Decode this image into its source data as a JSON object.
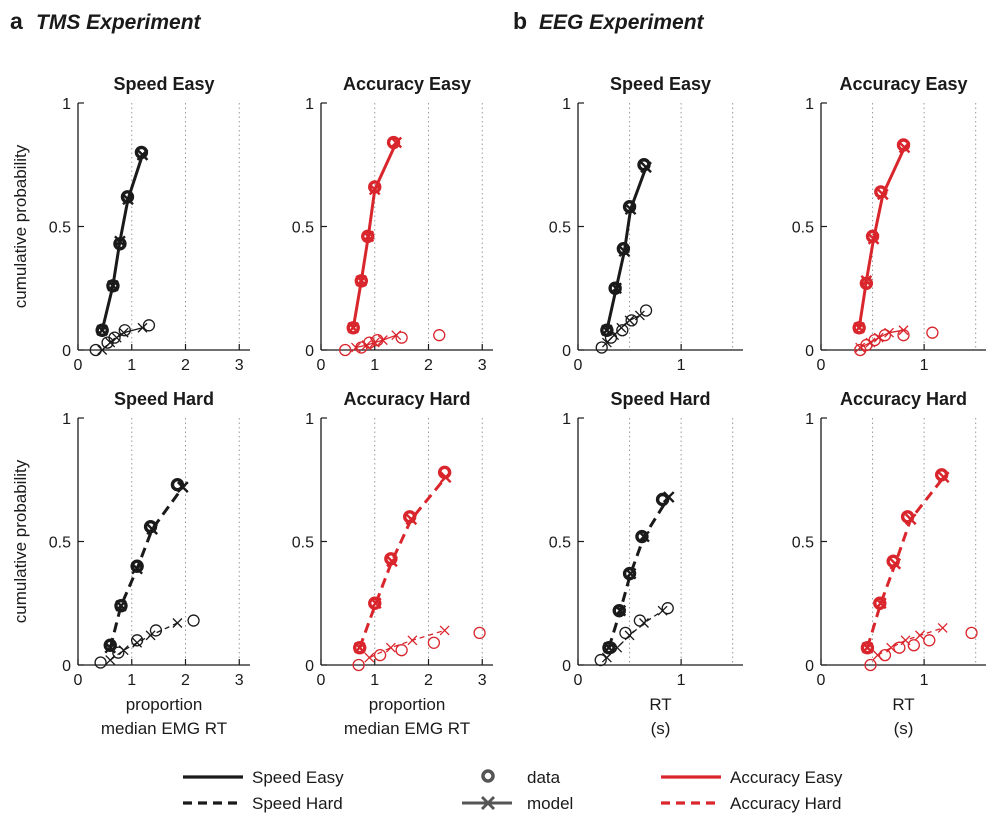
{
  "header": {
    "a_letter": "a",
    "a_title": "TMS Experiment",
    "b_letter": "b",
    "b_title": "EEG Experiment"
  },
  "legend": {
    "speed_easy": "Speed Easy",
    "speed_hard": "Speed Hard",
    "data": "data",
    "model": "model",
    "accuracy_easy": "Accuracy Easy",
    "accuracy_hard": "Accuracy Hard"
  },
  "colors": {
    "speed": "#1a1a1a",
    "accuracy": "#d9252c",
    "model_legend": "#555555",
    "grid": "#9a9a9a"
  },
  "chart_data": [
    {
      "type": "line",
      "title": "Speed Easy",
      "condition": "speed",
      "line_style": "solid",
      "xlabel": "",
      "ylabel": "cumulative probability",
      "xlim": [
        0,
        3.2
      ],
      "ylim": [
        0,
        1
      ],
      "xticks": [
        0,
        1,
        2,
        3
      ],
      "yticks": [
        0,
        0.5,
        1
      ],
      "grid_x": [
        1,
        2,
        3
      ],
      "correct_data": [
        [
          0.45,
          0.08
        ],
        [
          0.65,
          0.26
        ],
        [
          0.78,
          0.43
        ],
        [
          0.92,
          0.62
        ],
        [
          1.18,
          0.8
        ]
      ],
      "correct_model": [
        [
          0.45,
          0.08
        ],
        [
          0.65,
          0.26
        ],
        [
          0.78,
          0.44
        ],
        [
          0.93,
          0.61
        ],
        [
          1.2,
          0.79
        ]
      ],
      "error_data": [
        [
          0.33,
          0.0
        ],
        [
          0.55,
          0.03
        ],
        [
          0.68,
          0.05
        ],
        [
          0.87,
          0.08
        ],
        [
          1.32,
          0.1
        ]
      ],
      "error_model": [
        [
          0.45,
          0.0
        ],
        [
          0.6,
          0.03
        ],
        [
          0.72,
          0.05
        ],
        [
          0.85,
          0.07
        ],
        [
          1.2,
          0.09
        ]
      ]
    },
    {
      "type": "line",
      "title": "Accuracy Easy",
      "condition": "accuracy",
      "line_style": "solid",
      "xlabel": "",
      "ylabel": "",
      "xlim": [
        0,
        3.2
      ],
      "ylim": [
        0,
        1
      ],
      "xticks": [
        0,
        1,
        2,
        3
      ],
      "yticks": [
        0,
        0.5,
        1
      ],
      "grid_x": [
        1,
        2,
        3
      ],
      "correct_data": [
        [
          0.6,
          0.09
        ],
        [
          0.75,
          0.28
        ],
        [
          0.87,
          0.46
        ],
        [
          1.0,
          0.66
        ],
        [
          1.35,
          0.84
        ]
      ],
      "correct_model": [
        [
          0.6,
          0.09
        ],
        [
          0.75,
          0.28
        ],
        [
          0.88,
          0.46
        ],
        [
          1.0,
          0.65
        ],
        [
          1.4,
          0.84
        ]
      ],
      "error_data": [
        [
          0.45,
          0.0
        ],
        [
          0.75,
          0.01
        ],
        [
          0.9,
          0.03
        ],
        [
          1.05,
          0.04
        ],
        [
          1.5,
          0.05
        ],
        [
          2.2,
          0.06
        ]
      ],
      "error_model": [
        [
          0.65,
          0.01
        ],
        [
          0.85,
          0.02
        ],
        [
          1.0,
          0.03
        ],
        [
          1.15,
          0.04
        ],
        [
          1.4,
          0.06
        ]
      ]
    },
    {
      "type": "line",
      "title": "Speed Easy",
      "condition": "speed",
      "line_style": "solid",
      "xlabel": "",
      "ylabel": "",
      "xlim": [
        0,
        1.6
      ],
      "ylim": [
        0,
        1
      ],
      "xticks": [
        0,
        1
      ],
      "yticks": [
        0,
        0.5,
        1
      ],
      "grid_x": [
        0.5,
        1,
        1.5
      ],
      "correct_data": [
        [
          0.28,
          0.08
        ],
        [
          0.36,
          0.25
        ],
        [
          0.44,
          0.41
        ],
        [
          0.5,
          0.58
        ],
        [
          0.64,
          0.75
        ]
      ],
      "correct_model": [
        [
          0.28,
          0.08
        ],
        [
          0.37,
          0.25
        ],
        [
          0.45,
          0.4
        ],
        [
          0.51,
          0.57
        ],
        [
          0.66,
          0.74
        ]
      ],
      "error_data": [
        [
          0.23,
          0.01
        ],
        [
          0.32,
          0.05
        ],
        [
          0.43,
          0.08
        ],
        [
          0.52,
          0.12
        ],
        [
          0.66,
          0.16
        ]
      ],
      "error_model": [
        [
          0.28,
          0.03
        ],
        [
          0.35,
          0.06
        ],
        [
          0.42,
          0.09
        ],
        [
          0.5,
          0.12
        ],
        [
          0.6,
          0.14
        ]
      ]
    },
    {
      "type": "line",
      "title": "Accuracy Easy",
      "condition": "accuracy",
      "line_style": "solid",
      "xlabel": "",
      "ylabel": "",
      "xlim": [
        0,
        1.6
      ],
      "ylim": [
        0,
        1
      ],
      "xticks": [
        0,
        1
      ],
      "yticks": [
        0,
        0.5,
        1
      ],
      "grid_x": [
        0.5,
        1,
        1.5
      ],
      "correct_data": [
        [
          0.37,
          0.09
        ],
        [
          0.44,
          0.27
        ],
        [
          0.5,
          0.46
        ],
        [
          0.58,
          0.64
        ],
        [
          0.8,
          0.83
        ]
      ],
      "correct_model": [
        [
          0.37,
          0.09
        ],
        [
          0.44,
          0.28
        ],
        [
          0.51,
          0.45
        ],
        [
          0.6,
          0.63
        ],
        [
          0.81,
          0.82
        ]
      ],
      "error_data": [
        [
          0.38,
          0.0
        ],
        [
          0.44,
          0.02
        ],
        [
          0.52,
          0.04
        ],
        [
          0.62,
          0.06
        ],
        [
          0.8,
          0.06
        ],
        [
          1.08,
          0.07
        ]
      ],
      "error_model": [
        [
          0.38,
          0.01
        ],
        [
          0.48,
          0.03
        ],
        [
          0.56,
          0.05
        ],
        [
          0.66,
          0.07
        ],
        [
          0.8,
          0.08
        ]
      ]
    },
    {
      "type": "line",
      "title": "Speed Hard",
      "condition": "speed",
      "line_style": "dashed",
      "xlabel": "proportion\nmedian EMG RT",
      "ylabel": "cumulative probability",
      "xlim": [
        0,
        3.2
      ],
      "ylim": [
        0,
        1
      ],
      "xticks": [
        0,
        1,
        2,
        3
      ],
      "yticks": [
        0,
        0.5,
        1
      ],
      "grid_x": [
        1,
        2,
        3
      ],
      "correct_data": [
        [
          0.6,
          0.08
        ],
        [
          0.8,
          0.24
        ],
        [
          1.1,
          0.4
        ],
        [
          1.35,
          0.56
        ],
        [
          1.85,
          0.73
        ]
      ],
      "correct_model": [
        [
          0.6,
          0.07
        ],
        [
          0.8,
          0.24
        ],
        [
          1.1,
          0.39
        ],
        [
          1.38,
          0.55
        ],
        [
          1.95,
          0.72
        ]
      ],
      "error_data": [
        [
          0.42,
          0.01
        ],
        [
          0.75,
          0.05
        ],
        [
          1.1,
          0.1
        ],
        [
          1.45,
          0.14
        ],
        [
          2.15,
          0.18
        ]
      ],
      "error_model": [
        [
          0.6,
          0.02
        ],
        [
          0.85,
          0.06
        ],
        [
          1.1,
          0.09
        ],
        [
          1.35,
          0.12
        ],
        [
          1.85,
          0.17
        ]
      ]
    },
    {
      "type": "line",
      "title": "Accuracy Hard",
      "condition": "accuracy",
      "line_style": "dashed",
      "xlabel": "proportion\nmedian EMG RT",
      "ylabel": "",
      "xlim": [
        0,
        3.2
      ],
      "ylim": [
        0,
        1
      ],
      "xticks": [
        0,
        1,
        2,
        3
      ],
      "yticks": [
        0,
        0.5,
        1
      ],
      "grid_x": [
        1,
        2,
        3
      ],
      "correct_data": [
        [
          0.72,
          0.07
        ],
        [
          1.0,
          0.25
        ],
        [
          1.3,
          0.43
        ],
        [
          1.65,
          0.6
        ],
        [
          2.3,
          0.78
        ]
      ],
      "correct_model": [
        [
          0.72,
          0.07
        ],
        [
          1.02,
          0.25
        ],
        [
          1.32,
          0.42
        ],
        [
          1.68,
          0.59
        ],
        [
          2.32,
          0.76
        ]
      ],
      "error_data": [
        [
          0.7,
          0.0
        ],
        [
          1.1,
          0.04
        ],
        [
          1.5,
          0.06
        ],
        [
          2.1,
          0.09
        ],
        [
          2.95,
          0.13
        ]
      ],
      "error_model": [
        [
          0.9,
          0.03
        ],
        [
          1.3,
          0.07
        ],
        [
          1.7,
          0.1
        ],
        [
          2.3,
          0.14
        ]
      ]
    },
    {
      "type": "line",
      "title": "Speed Hard",
      "condition": "speed",
      "line_style": "dashed",
      "xlabel": "RT\n(s)",
      "ylabel": "",
      "xlim": [
        0,
        1.6
      ],
      "ylim": [
        0,
        1
      ],
      "xticks": [
        0,
        1
      ],
      "yticks": [
        0,
        0.5,
        1
      ],
      "grid_x": [
        0.5,
        1,
        1.5
      ],
      "correct_data": [
        [
          0.3,
          0.07
        ],
        [
          0.4,
          0.22
        ],
        [
          0.5,
          0.37
        ],
        [
          0.62,
          0.52
        ],
        [
          0.82,
          0.67
        ]
      ],
      "correct_model": [
        [
          0.3,
          0.07
        ],
        [
          0.41,
          0.22
        ],
        [
          0.51,
          0.37
        ],
        [
          0.64,
          0.52
        ],
        [
          0.88,
          0.68
        ]
      ],
      "error_data": [
        [
          0.22,
          0.02
        ],
        [
          0.32,
          0.07
        ],
        [
          0.46,
          0.13
        ],
        [
          0.6,
          0.18
        ],
        [
          0.87,
          0.23
        ]
      ],
      "error_model": [
        [
          0.28,
          0.03
        ],
        [
          0.38,
          0.07
        ],
        [
          0.5,
          0.12
        ],
        [
          0.64,
          0.17
        ],
        [
          0.82,
          0.22
        ]
      ]
    },
    {
      "type": "line",
      "title": "Accuracy Hard",
      "condition": "accuracy",
      "line_style": "dashed",
      "xlabel": "RT\n(s)",
      "ylabel": "",
      "xlim": [
        0,
        1.6
      ],
      "ylim": [
        0,
        1
      ],
      "xticks": [
        0,
        1
      ],
      "yticks": [
        0,
        0.5,
        1
      ],
      "grid_x": [
        0.5,
        1,
        1.5
      ],
      "correct_data": [
        [
          0.45,
          0.07
        ],
        [
          0.57,
          0.25
        ],
        [
          0.7,
          0.42
        ],
        [
          0.84,
          0.6
        ],
        [
          1.17,
          0.77
        ]
      ],
      "correct_model": [
        [
          0.45,
          0.07
        ],
        [
          0.58,
          0.25
        ],
        [
          0.72,
          0.41
        ],
        [
          0.87,
          0.59
        ],
        [
          1.19,
          0.76
        ]
      ],
      "error_data": [
        [
          0.48,
          0.0
        ],
        [
          0.62,
          0.04
        ],
        [
          0.76,
          0.07
        ],
        [
          0.9,
          0.08
        ],
        [
          1.05,
          0.1
        ],
        [
          1.46,
          0.13
        ]
      ],
      "error_model": [
        [
          0.55,
          0.04
        ],
        [
          0.68,
          0.07
        ],
        [
          0.82,
          0.1
        ],
        [
          0.96,
          0.12
        ],
        [
          1.18,
          0.15
        ]
      ]
    }
  ]
}
